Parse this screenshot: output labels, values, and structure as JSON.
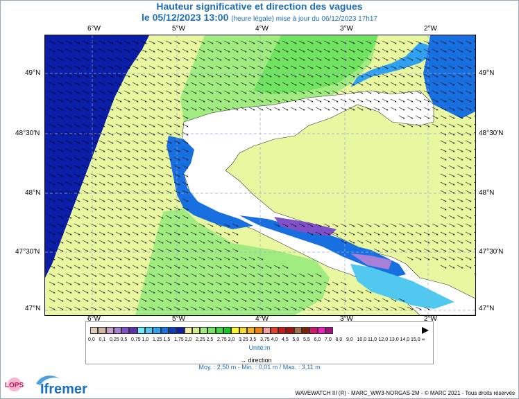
{
  "header": {
    "title": "Hauteur significative et direction des vagues",
    "date_line": "le 05/12/2023 13:00",
    "update_note": "(heure légale) mise à jour du 06/12/2023 17h17"
  },
  "map": {
    "top_ticks": [
      "6°W",
      "5°W",
      "4°W",
      "3°W",
      "2°W"
    ],
    "bottom_ticks": [
      "6°W",
      "5°W",
      "4°W",
      "3°W",
      "2°W"
    ],
    "left_ticks": [
      "49°N",
      "48°30'N",
      "48°N",
      "47°30'N",
      "47°N"
    ],
    "right_ticks": [
      "49°N",
      "48°30'N",
      "48°N",
      "47°30'N",
      "47°N"
    ],
    "land_color": "#ffffff",
    "direction_arrow": "dominant swell from WNW"
  },
  "legend": {
    "values": [
      "0,0",
      "0,1",
      "0,25",
      "0,5",
      "0,75",
      "1,0",
      "1,25",
      "1,5",
      "1,75",
      "2,0",
      "2,25",
      "2,5",
      "2,75",
      "3,0",
      "3,25",
      "3,5",
      "3,75",
      "4,0",
      "4,5",
      "5,0",
      "5,5",
      "6,0",
      "7,0",
      "8,0",
      "9,0",
      "10,0",
      "11,0",
      "12,0",
      "13,0",
      "14,0",
      "15,0",
      "∞"
    ],
    "colors": [
      "#e2c8b8",
      "#cdb5a0",
      "#c79fc8",
      "#a880d8",
      "#8050c8",
      "#5a30b0",
      "#70e8f8",
      "#50c8f0",
      "#30a0f0",
      "#1870e0",
      "#0840c0",
      "#0a1ea8",
      "#f0f0a0",
      "#d0f090",
      "#a0ec80",
      "#70e460",
      "#40d840",
      "#10c820",
      "#f8f830",
      "#f8d830",
      "#f8b020",
      "#f08010",
      "#f0a0a0",
      "#e84030",
      "#c81818",
      "#a81010",
      "#a07050",
      "#802000",
      "#d01868",
      "#f020c0",
      "#a01080"
    ],
    "unit": "Unité:m",
    "direction_label": "direction"
  },
  "stats": "Moy. : 2,50 m  -  Min. : 0,01 m / Max. : 3,11 m",
  "credit": "WAVEWATCH III (R) - MARC_WW3-NORGAS-2M - © MARC 2021 - Tous droits réservés",
  "logos": {
    "lops": "LOPS",
    "ifremer": "Ifremer"
  }
}
